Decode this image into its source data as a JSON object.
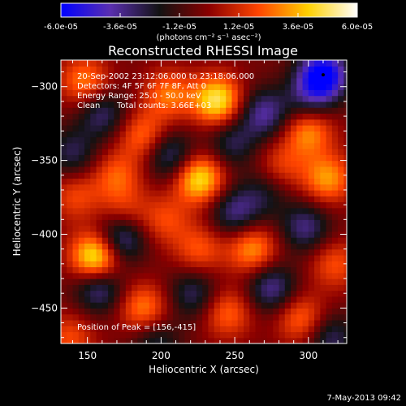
{
  "colorbar": {
    "tick_labels": [
      "-6.0e-05",
      "-3.6e-05",
      "-1.2e-05",
      "1.2e-05",
      "3.6e-05",
      "6.0e-05"
    ],
    "tick_values": [
      -6e-05,
      -3.6e-05,
      -1.2e-05,
      1.2e-05,
      3.6e-05,
      6e-05
    ],
    "range": [
      -6e-05,
      6e-05
    ],
    "colormap_stops": [
      "#0000ff",
      "#5a2fb0",
      "#121212",
      "#8b0000",
      "#ff4500",
      "#ffd000",
      "#ffffff"
    ],
    "units_label": "(photons cm⁻² s⁻¹ asec⁻²)"
  },
  "chart_data": {
    "type": "heatmap",
    "title": "Reconstructed RHESSI Image",
    "xlabel": "Heliocentric X (arcsec)",
    "ylabel": "Heliocentric Y (arcsec)",
    "xlim": [
      132,
      326
    ],
    "ylim": [
      -474,
      -282
    ],
    "xticks": [
      150,
      200,
      250,
      300
    ],
    "yticks": [
      -300,
      -350,
      -400,
      -450
    ],
    "xtick_labels": [
      "150",
      "200",
      "250",
      "300"
    ],
    "ytick_labels": [
      "−300",
      "−350",
      "−400",
      "−450"
    ],
    "grid": false,
    "annotations": {
      "time_range": "20-Sep-2002 23:12:06.000 to 23:18:06.000",
      "detectors": "Detectors: 4F 5F 6F 7F 8F, Att 0",
      "energy_range": "Energy Range: 25.0 - 50.0 keV",
      "clean": "Clean",
      "total_counts": "Total counts: 3.66E+03",
      "peak_position": "Position of Peak = [156,-415]"
    },
    "peak": {
      "x": 156,
      "y": -415
    },
    "blobs": [
      {
        "x": 156,
        "y": -415,
        "v": 6e-05
      },
      {
        "x": 238,
        "y": -309,
        "v": 5.2e-05
      },
      {
        "x": 226,
        "y": -362,
        "v": 5e-05
      },
      {
        "x": 148,
        "y": -296,
        "v": 3.2e-05
      },
      {
        "x": 300,
        "y": -330,
        "v": 3.5e-05
      },
      {
        "x": 262,
        "y": -410,
        "v": 3.6e-05
      },
      {
        "x": 313,
        "y": -362,
        "v": 3.6e-05
      },
      {
        "x": 188,
        "y": -450,
        "v": 3.3e-05
      },
      {
        "x": 188,
        "y": -333,
        "v": 3e-05
      },
      {
        "x": 205,
        "y": -305,
        "v": 3e-05
      },
      {
        "x": 170,
        "y": -360,
        "v": 2.6e-05
      },
      {
        "x": 142,
        "y": -374,
        "v": 2.2e-05
      },
      {
        "x": 245,
        "y": -453,
        "v": 2.8e-05
      },
      {
        "x": 295,
        "y": -457,
        "v": 2.9e-05
      },
      {
        "x": 226,
        "y": -410,
        "v": 2.5e-05
      },
      {
        "x": 318,
        "y": -420,
        "v": 2.4e-05
      },
      {
        "x": 203,
        "y": -390,
        "v": 2.2e-05
      },
      {
        "x": 282,
        "y": -353,
        "v": 2e-05
      },
      {
        "x": 175,
        "y": -384,
        "v": 1.8e-05
      },
      {
        "x": 138,
        "y": -470,
        "v": 2.3e-05
      },
      {
        "x": 310,
        "y": -292,
        "v": -6e-05
      },
      {
        "x": 172,
        "y": -403,
        "v": -4e-05
      },
      {
        "x": 270,
        "y": -318,
        "v": -3.4e-05
      },
      {
        "x": 206,
        "y": -346,
        "v": -3.2e-05
      },
      {
        "x": 158,
        "y": -436,
        "v": -3.4e-05
      },
      {
        "x": 275,
        "y": -436,
        "v": -3.3e-05
      },
      {
        "x": 298,
        "y": -395,
        "v": -3e-05
      },
      {
        "x": 160,
        "y": -318,
        "v": -2.8e-05
      },
      {
        "x": 250,
        "y": -385,
        "v": -3e-05
      },
      {
        "x": 222,
        "y": -440,
        "v": -2.6e-05
      },
      {
        "x": 248,
        "y": -338,
        "v": -2.4e-05
      },
      {
        "x": 300,
        "y": -308,
        "v": -2.2e-05
      },
      {
        "x": 140,
        "y": -345,
        "v": -2.4e-05
      },
      {
        "x": 315,
        "y": -470,
        "v": -2.6e-05
      },
      {
        "x": 196,
        "y": -472,
        "v": -2.2e-05
      },
      {
        "x": 270,
        "y": -372,
        "v": -1.8e-05
      }
    ]
  },
  "footer": {
    "date": "7-May-2013 09:42"
  }
}
